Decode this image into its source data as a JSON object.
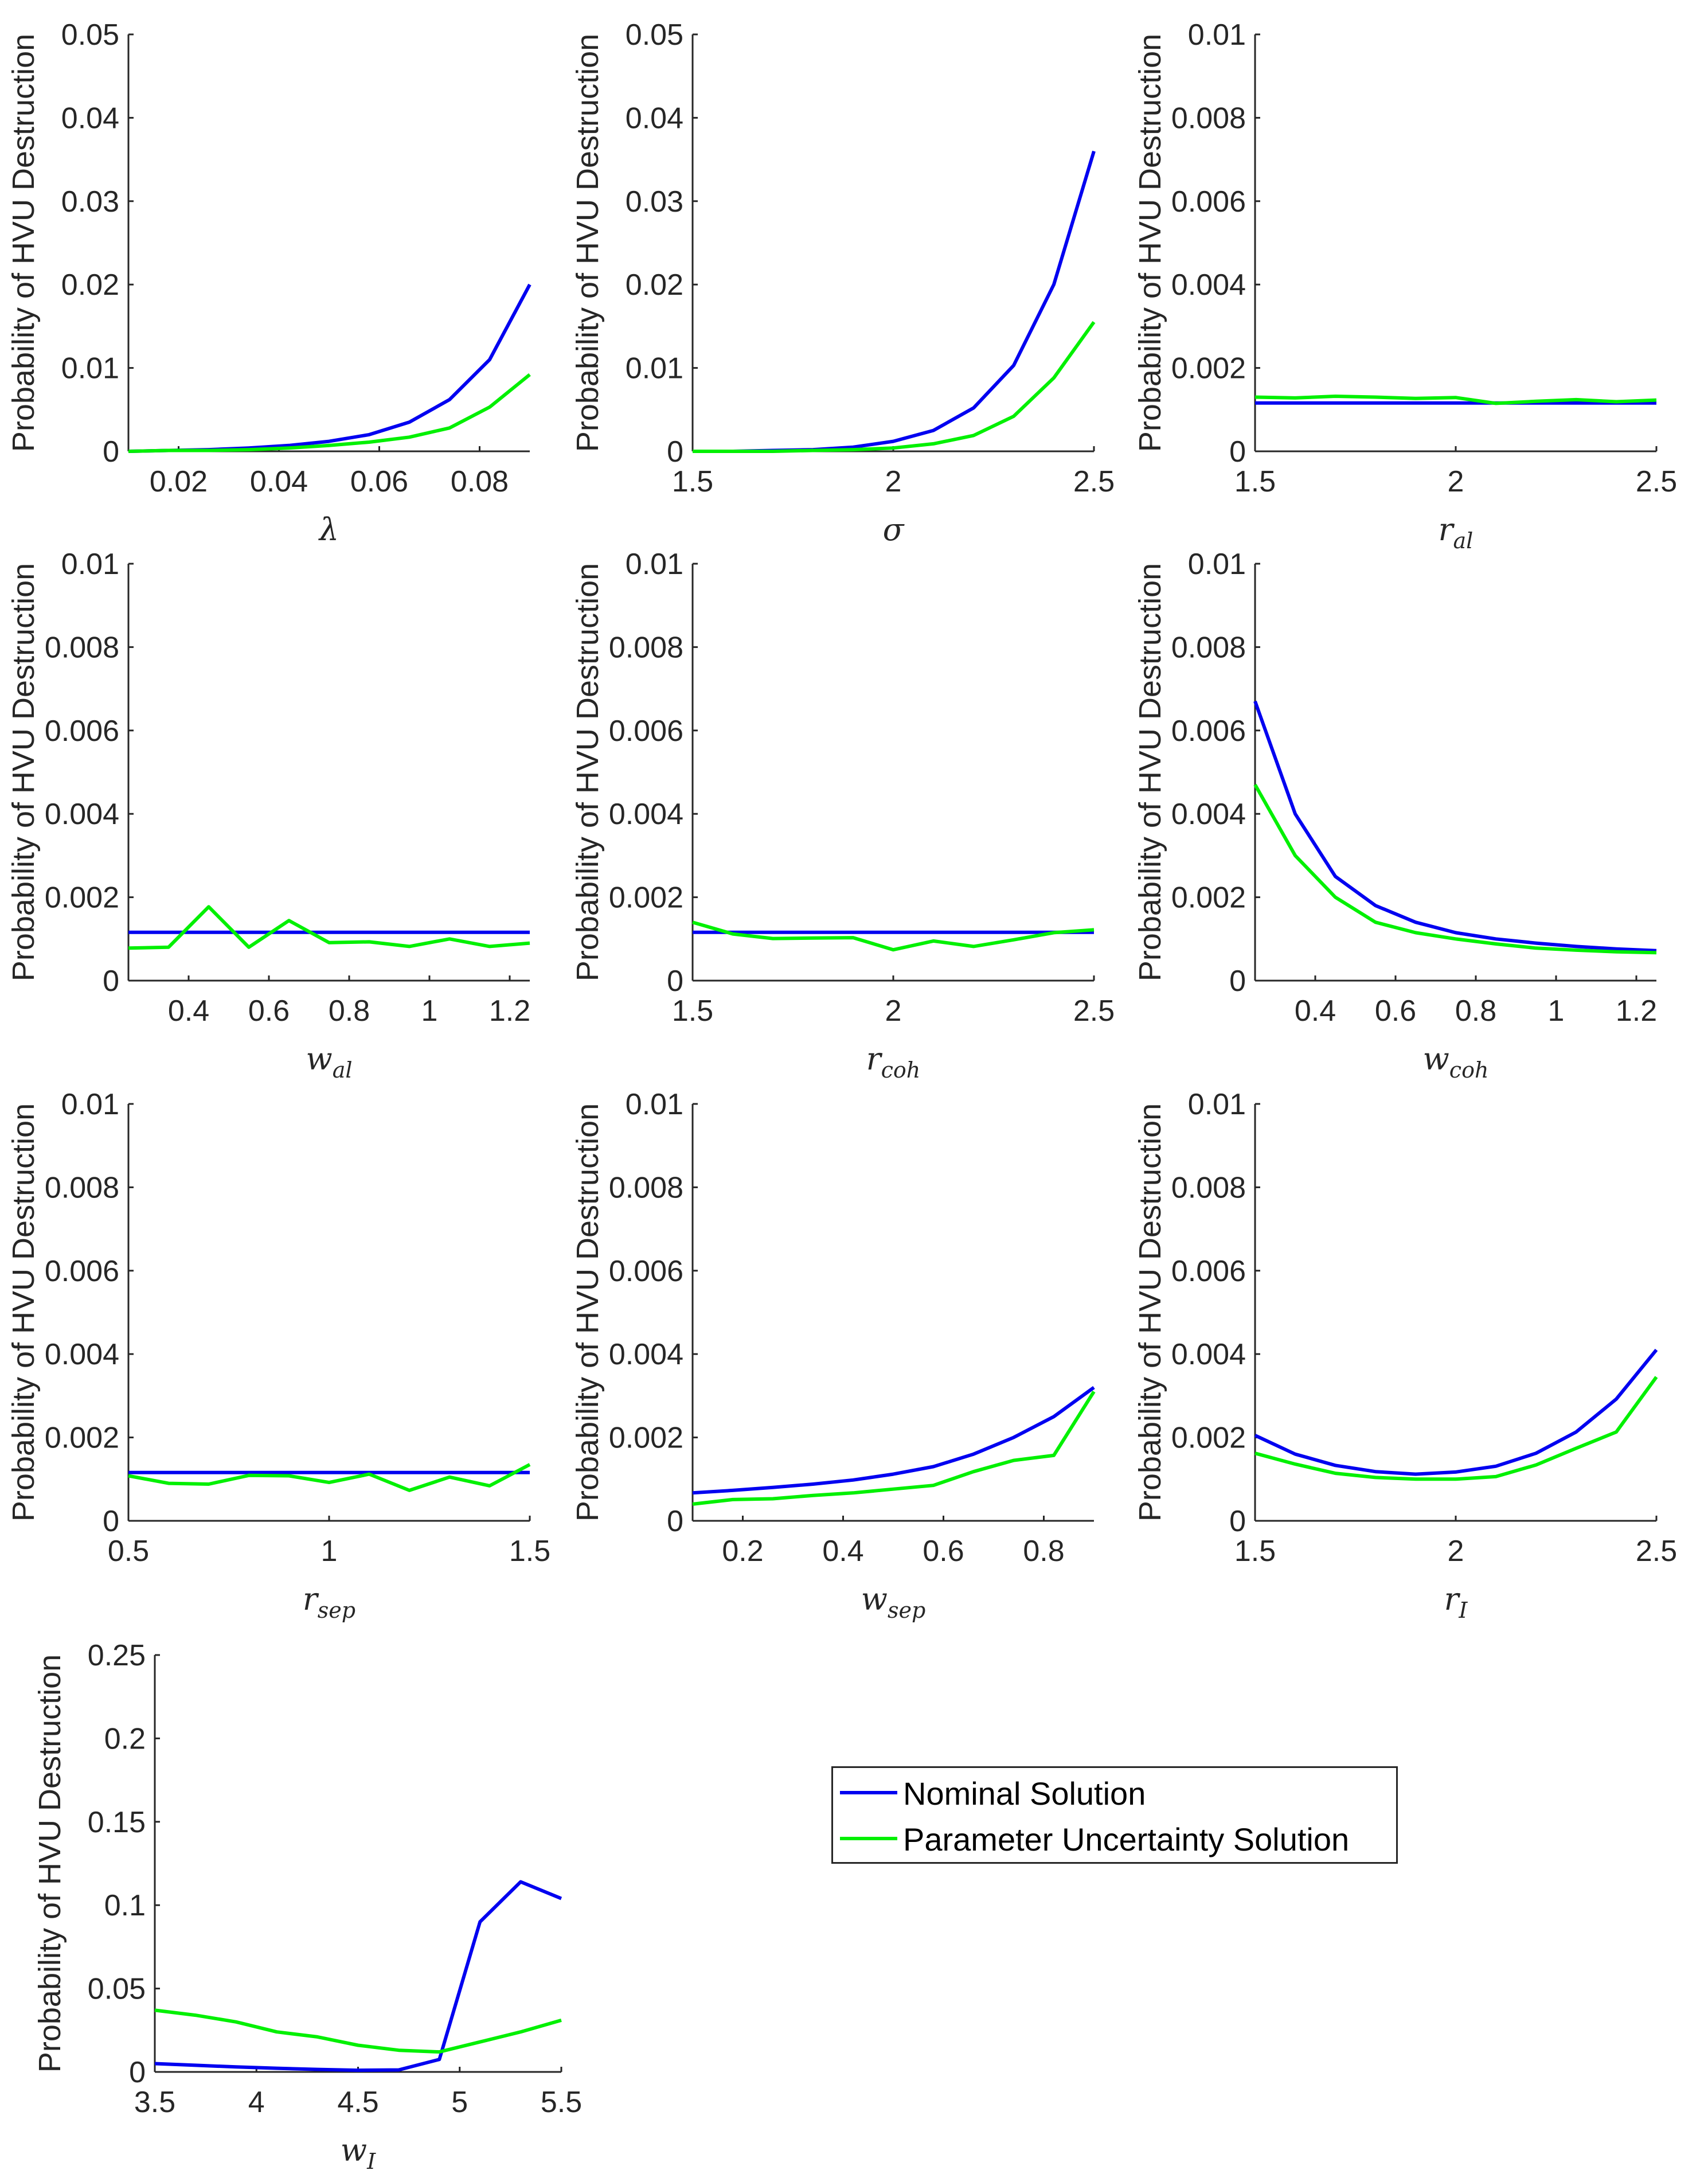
{
  "colors": {
    "nominal": "#0000f0",
    "uncertainty": "#00f000",
    "axis": "#262626"
  },
  "legend": {
    "items": [
      {
        "label": "Nominal Solution",
        "series": "nominal"
      },
      {
        "label": "Parameter Uncertainty Solution",
        "series": "uncertainty"
      }
    ]
  },
  "chart_data": [
    {
      "type": "line",
      "xlabel": "λ",
      "ylabel": "Probability of HVU Destruction",
      "xlim": [
        0.01,
        0.09
      ],
      "ylim": [
        0,
        0.05
      ],
      "xticks": [
        "0.02",
        "0.04",
        "0.06",
        "0.08"
      ],
      "yticks": [
        "0",
        "0.01",
        "0.02",
        "0.03",
        "0.04",
        "0.05"
      ],
      "series": [
        {
          "name": "Nominal Solution",
          "x": [
            0.01,
            0.018,
            0.026,
            0.034,
            0.042,
            0.05,
            0.058,
            0.066,
            0.074,
            0.082,
            0.09
          ],
          "values": [
            0,
            0.0001,
            0.0002,
            0.0004,
            0.0007,
            0.0012,
            0.002,
            0.0035,
            0.0062,
            0.011,
            0.02
          ]
        },
        {
          "name": "Parameter Uncertainty Solution",
          "x": [
            0.01,
            0.018,
            0.026,
            0.034,
            0.042,
            0.05,
            0.058,
            0.066,
            0.074,
            0.082,
            0.09
          ],
          "values": [
            0,
            0.0001,
            0.0001,
            0.0002,
            0.0004,
            0.0007,
            0.0011,
            0.0017,
            0.0028,
            0.0053,
            0.0092
          ]
        }
      ]
    },
    {
      "type": "line",
      "xlabel": "σ",
      "ylabel": "Probability of HVU Destruction",
      "xlim": [
        1.5,
        2.5
      ],
      "ylim": [
        0,
        0.05
      ],
      "xticks": [
        "1.5",
        "2",
        "2.5"
      ],
      "yticks": [
        "0",
        "0.01",
        "0.02",
        "0.03",
        "0.04",
        "0.05"
      ],
      "series": [
        {
          "name": "Nominal Solution",
          "x": [
            1.5,
            1.6,
            1.7,
            1.8,
            1.9,
            2.0,
            2.1,
            2.2,
            2.3,
            2.4,
            2.5
          ],
          "values": [
            0,
            0,
            0.0001,
            0.0002,
            0.0005,
            0.0012,
            0.0025,
            0.0052,
            0.0103,
            0.02,
            0.036
          ]
        },
        {
          "name": "Parameter Uncertainty Solution",
          "x": [
            1.5,
            1.6,
            1.7,
            1.8,
            1.9,
            2.0,
            2.1,
            2.2,
            2.3,
            2.4,
            2.5
          ],
          "values": [
            0,
            0,
            0,
            0.0001,
            0.0002,
            0.0004,
            0.0009,
            0.0019,
            0.0042,
            0.0088,
            0.0155
          ]
        }
      ]
    },
    {
      "type": "line",
      "xlabel": "r_al",
      "ylabel": "Probability of HVU Destruction",
      "xlim": [
        1.5,
        2.5
      ],
      "ylim": [
        0,
        0.01
      ],
      "xticks": [
        "1.5",
        "2",
        "2.5"
      ],
      "yticks": [
        "0",
        "0.002",
        "0.004",
        "0.006",
        "0.008",
        "0.01"
      ],
      "series": [
        {
          "name": "Nominal Solution",
          "x": [
            1.5,
            1.6,
            1.7,
            1.8,
            1.9,
            2.0,
            2.1,
            2.2,
            2.3,
            2.4,
            2.5
          ],
          "values": [
            0.00116,
            0.00116,
            0.00116,
            0.00116,
            0.00116,
            0.00116,
            0.00116,
            0.00116,
            0.00116,
            0.00116,
            0.00116
          ]
        },
        {
          "name": "Parameter Uncertainty Solution",
          "x": [
            1.5,
            1.6,
            1.7,
            1.8,
            1.9,
            2.0,
            2.1,
            2.2,
            2.3,
            2.4,
            2.5
          ],
          "values": [
            0.0013,
            0.00128,
            0.00132,
            0.0013,
            0.00127,
            0.00129,
            0.00115,
            0.0012,
            0.00124,
            0.00119,
            0.00123
          ]
        }
      ]
    },
    {
      "type": "line",
      "xlabel": "w_al",
      "ylabel": "Probability of HVU Destruction",
      "xlim": [
        0.25,
        1.25
      ],
      "ylim": [
        0,
        0.01
      ],
      "xticks": [
        "0.4",
        "0.6",
        "0.8",
        "1",
        "1.2"
      ],
      "yticks": [
        "0",
        "0.002",
        "0.004",
        "0.006",
        "0.008",
        "0.01"
      ],
      "series": [
        {
          "name": "Nominal Solution",
          "x": [
            0.25,
            0.35,
            0.45,
            0.55,
            0.65,
            0.75,
            0.85,
            0.95,
            1.05,
            1.15,
            1.25
          ],
          "values": [
            0.00116,
            0.00116,
            0.00116,
            0.00116,
            0.00116,
            0.00116,
            0.00116,
            0.00116,
            0.00116,
            0.00116,
            0.00116
          ]
        },
        {
          "name": "Parameter Uncertainty Solution",
          "x": [
            0.25,
            0.35,
            0.45,
            0.55,
            0.65,
            0.75,
            0.85,
            0.95,
            1.05,
            1.15,
            1.25
          ],
          "values": [
            0.00078,
            0.0008,
            0.00177,
            0.0008,
            0.00144,
            0.00091,
            0.00093,
            0.00082,
            0.001,
            0.00082,
            0.0009
          ]
        }
      ]
    },
    {
      "type": "line",
      "xlabel": "r_coh",
      "ylabel": "Probability of HVU Destruction",
      "xlim": [
        1.5,
        2.5
      ],
      "ylim": [
        0,
        0.01
      ],
      "xticks": [
        "1.5",
        "2",
        "2.5"
      ],
      "yticks": [
        "0",
        "0.002",
        "0.004",
        "0.006",
        "0.008",
        "0.01"
      ],
      "series": [
        {
          "name": "Nominal Solution",
          "x": [
            1.5,
            1.6,
            1.7,
            1.8,
            1.9,
            2.0,
            2.1,
            2.2,
            2.3,
            2.4,
            2.5
          ],
          "values": [
            0.00116,
            0.00116,
            0.00116,
            0.00116,
            0.00116,
            0.00116,
            0.00116,
            0.00116,
            0.00116,
            0.00116,
            0.00116
          ]
        },
        {
          "name": "Parameter Uncertainty Solution",
          "x": [
            1.5,
            1.6,
            1.7,
            1.8,
            1.9,
            2.0,
            2.1,
            2.2,
            2.3,
            2.4,
            2.5
          ],
          "values": [
            0.0014,
            0.00112,
            0.00101,
            0.00102,
            0.00103,
            0.00074,
            0.00095,
            0.00082,
            0.00098,
            0.00115,
            0.00122
          ]
        }
      ]
    },
    {
      "type": "line",
      "xlabel": "w_coh",
      "ylabel": "Probability of HVU Destruction",
      "xlim": [
        0.25,
        1.25
      ],
      "ylim": [
        0,
        0.01
      ],
      "xticks": [
        "0.4",
        "0.6",
        "0.8",
        "1",
        "1.2"
      ],
      "yticks": [
        "0",
        "0.002",
        "0.004",
        "0.006",
        "0.008",
        "0.01"
      ],
      "series": [
        {
          "name": "Nominal Solution",
          "x": [
            0.25,
            0.35,
            0.45,
            0.55,
            0.65,
            0.75,
            0.85,
            0.95,
            1.05,
            1.15,
            1.25
          ],
          "values": [
            0.0067,
            0.004,
            0.0025,
            0.0018,
            0.0014,
            0.00115,
            0.001,
            0.0009,
            0.00082,
            0.00076,
            0.00072
          ]
        },
        {
          "name": "Parameter Uncertainty Solution",
          "x": [
            0.25,
            0.35,
            0.45,
            0.55,
            0.65,
            0.75,
            0.85,
            0.95,
            1.05,
            1.15,
            1.25
          ],
          "values": [
            0.0047,
            0.003,
            0.002,
            0.0014,
            0.00115,
            0.001,
            0.00088,
            0.00078,
            0.00073,
            0.00069,
            0.00067
          ]
        }
      ]
    },
    {
      "type": "line",
      "xlabel": "r_sep",
      "ylabel": "Probability of HVU Destruction",
      "xlim": [
        0.5,
        1.5
      ],
      "ylim": [
        0,
        0.01
      ],
      "xticks": [
        "0.5",
        "1",
        "1.5"
      ],
      "yticks": [
        "0",
        "0.002",
        "0.004",
        "0.006",
        "0.008",
        "0.01"
      ],
      "series": [
        {
          "name": "Nominal Solution",
          "x": [
            0.5,
            0.6,
            0.7,
            0.8,
            0.9,
            1.0,
            1.1,
            1.2,
            1.3,
            1.4,
            1.5
          ],
          "values": [
            0.00116,
            0.00116,
            0.00116,
            0.00116,
            0.00116,
            0.00116,
            0.00116,
            0.00116,
            0.00116,
            0.00116,
            0.00116
          ]
        },
        {
          "name": "Parameter Uncertainty Solution",
          "x": [
            0.5,
            0.6,
            0.7,
            0.8,
            0.9,
            1.0,
            1.1,
            1.2,
            1.3,
            1.4,
            1.5
          ],
          "values": [
            0.00108,
            0.0009,
            0.00088,
            0.00109,
            0.00108,
            0.00092,
            0.00112,
            0.00073,
            0.00105,
            0.00084,
            0.00135
          ]
        }
      ]
    },
    {
      "type": "line",
      "xlabel": "w_sep",
      "ylabel": "Probability of HVU Destruction",
      "xlim": [
        0.1,
        0.9
      ],
      "ylim": [
        0,
        0.01
      ],
      "xticks": [
        "0.2",
        "0.4",
        "0.6",
        "0.8"
      ],
      "yticks": [
        "0",
        "0.002",
        "0.004",
        "0.006",
        "0.008",
        "0.01"
      ],
      "series": [
        {
          "name": "Nominal Solution",
          "x": [
            0.1,
            0.18,
            0.26,
            0.34,
            0.42,
            0.5,
            0.58,
            0.66,
            0.74,
            0.82,
            0.9
          ],
          "values": [
            0.00067,
            0.00073,
            0.0008,
            0.00088,
            0.00098,
            0.00112,
            0.0013,
            0.0016,
            0.002,
            0.0025,
            0.0032
          ]
        },
        {
          "name": "Parameter Uncertainty Solution",
          "x": [
            0.1,
            0.18,
            0.26,
            0.34,
            0.42,
            0.5,
            0.58,
            0.66,
            0.74,
            0.82,
            0.9
          ],
          "values": [
            0.0004,
            0.00051,
            0.00053,
            0.00061,
            0.00067,
            0.00076,
            0.00085,
            0.00118,
            0.00145,
            0.00157,
            0.0031
          ]
        }
      ]
    },
    {
      "type": "line",
      "xlabel": "r_I",
      "ylabel": "Probability of HVU Destruction",
      "xlim": [
        1.5,
        2.5
      ],
      "ylim": [
        0,
        0.01
      ],
      "xticks": [
        "1.5",
        "2",
        "2.5"
      ],
      "yticks": [
        "0",
        "0.002",
        "0.004",
        "0.006",
        "0.008",
        "0.01"
      ],
      "series": [
        {
          "name": "Nominal Solution",
          "x": [
            1.5,
            1.6,
            1.7,
            1.8,
            1.9,
            2.0,
            2.1,
            2.2,
            2.3,
            2.4,
            2.5
          ],
          "values": [
            0.00205,
            0.0016,
            0.00133,
            0.00118,
            0.00112,
            0.00117,
            0.00131,
            0.00162,
            0.00213,
            0.00292,
            0.0041
          ]
        },
        {
          "name": "Parameter Uncertainty Solution",
          "x": [
            1.5,
            1.6,
            1.7,
            1.8,
            1.9,
            2.0,
            2.1,
            2.2,
            2.3,
            2.4,
            2.5
          ],
          "values": [
            0.00162,
            0.00136,
            0.00114,
            0.00104,
            0.001,
            0.001,
            0.00106,
            0.00134,
            0.00174,
            0.00213,
            0.00345
          ]
        }
      ]
    },
    {
      "type": "line",
      "xlabel": "w_I",
      "ylabel": "Probability of HVU Destruction",
      "xlim": [
        3.5,
        5.5
      ],
      "ylim": [
        0,
        0.25
      ],
      "xticks": [
        "3.5",
        "4",
        "4.5",
        "5",
        "5.5"
      ],
      "yticks": [
        "0",
        "0.05",
        "0.1",
        "0.15",
        "0.2",
        "0.25"
      ],
      "series": [
        {
          "name": "Nominal Solution",
          "x": [
            3.5,
            3.7,
            3.9,
            4.1,
            4.3,
            4.5,
            4.7,
            4.9,
            5.1,
            5.3,
            5.5
          ],
          "values": [
            0.005,
            0.004,
            0.003,
            0.0022,
            0.0015,
            0.001,
            0.0012,
            0.0075,
            0.09,
            0.114,
            0.104
          ]
        },
        {
          "name": "Parameter Uncertainty Solution",
          "x": [
            3.5,
            3.7,
            3.9,
            4.1,
            4.3,
            4.5,
            4.7,
            4.9,
            5.1,
            5.3,
            5.5
          ],
          "values": [
            0.037,
            0.034,
            0.03,
            0.024,
            0.021,
            0.016,
            0.013,
            0.012,
            0.018,
            0.024,
            0.031
          ]
        }
      ]
    }
  ]
}
